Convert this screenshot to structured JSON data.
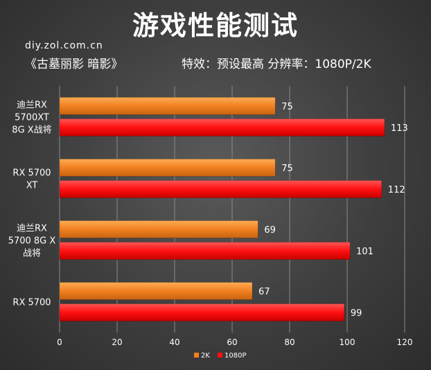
{
  "header": {
    "title": "游戏性能测试",
    "site": "diy.zol.com.cn",
    "game": "《古墓丽影 暗影》",
    "settings": "特效：预设最高  分辨率：1080P/2K"
  },
  "chart_data": {
    "type": "bar",
    "orientation": "horizontal",
    "categories": [
      [
        "迪兰RX",
        "5700XT",
        "8G X战将"
      ],
      [
        "RX 5700",
        "XT"
      ],
      [
        "迪兰RX",
        "5700 8G X",
        "战将"
      ],
      [
        "RX 5700"
      ]
    ],
    "series": [
      {
        "name": "2K",
        "color": "#f08020",
        "values": [
          75,
          75,
          69,
          67
        ]
      },
      {
        "name": "1080P",
        "color": "#ff1010",
        "values": [
          113,
          112,
          101,
          99
        ]
      }
    ],
    "xlim": [
      0,
      120
    ],
    "xticks": [
      "0",
      "20",
      "40",
      "60",
      "80",
      "100",
      "120"
    ],
    "grid": true,
    "legend": "bottom"
  }
}
